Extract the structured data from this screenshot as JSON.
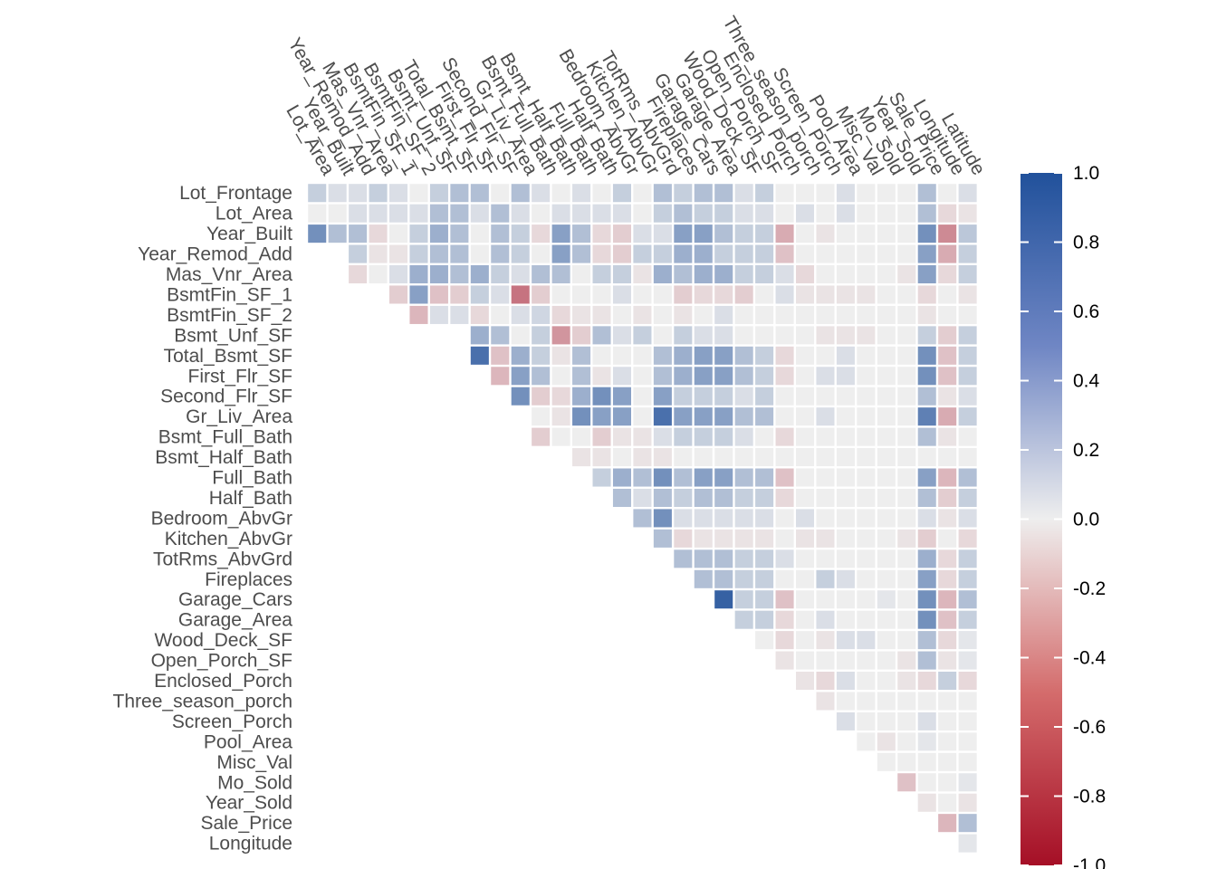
{
  "chart_data": {
    "type": "heatmap",
    "title": "",
    "xlabel": "",
    "ylabel": "",
    "variables": [
      "Lot_Frontage",
      "Lot_Area",
      "Year_Built",
      "Year_Remod_Add",
      "Mas_Vnr_Area",
      "BsmtFin_SF_1",
      "BsmtFin_SF_2",
      "Bsmt_Unf_SF",
      "Total_Bsmt_SF",
      "First_Flr_SF",
      "Second_Flr_SF",
      "Gr_Liv_Area",
      "Bsmt_Full_Bath",
      "Bsmt_Half_Bath",
      "Full_Bath",
      "Half_Bath",
      "Bedroom_AbvGr",
      "Kitchen_AbvGr",
      "TotRms_AbvGrd",
      "Fireplaces",
      "Garage_Cars",
      "Garage_Area",
      "Wood_Deck_SF",
      "Open_Porch_SF",
      "Enclosed_Porch",
      "Three_season_porch",
      "Screen_Porch",
      "Pool_Area",
      "Misc_Val",
      "Mo_Sold",
      "Year_Sold",
      "Sale_Price",
      "Longitude",
      "Latitude"
    ],
    "row_labels": [
      "Lot_Frontage",
      "Lot_Area",
      "Year_Built",
      "Year_Remod_Add",
      "Mas_Vnr_Area",
      "BsmtFin_SF_1",
      "BsmtFin_SF_2",
      "Bsmt_Unf_SF",
      "Total_Bsmt_SF",
      "First_Flr_SF",
      "Second_Flr_SF",
      "Gr_Liv_Area",
      "Bsmt_Full_Bath",
      "Bsmt_Half_Bath",
      "Full_Bath",
      "Half_Bath",
      "Bedroom_AbvGr",
      "Kitchen_AbvGr",
      "TotRms_AbvGrd",
      "Fireplaces",
      "Garage_Cars",
      "Garage_Area",
      "Wood_Deck_SF",
      "Open_Porch_SF",
      "Enclosed_Porch",
      "Three_season_porch",
      "Screen_Porch",
      "Pool_Area",
      "Misc_Val",
      "Mo_Sold",
      "Year_Sold",
      "Sale_Price",
      "Longitude"
    ],
    "col_labels": [
      "Lot_Area",
      "Year_Built",
      "Year_Remod_Add",
      "Mas_Vnr_Area",
      "BsmtFin_SF_1",
      "BsmtFin_SF_2",
      "Bsmt_Unf_SF",
      "Total_Bsmt_SF",
      "First_Flr_SF",
      "Second_Flr_SF",
      "Gr_Liv_Area",
      "Bsmt_Full_Bath",
      "Bsmt_Half_Bath",
      "Full_Bath",
      "Half_Bath",
      "Bedroom_AbvGr",
      "Kitchen_AbvGr",
      "TotRms_AbvGrd",
      "Fireplaces",
      "Garage_Cars",
      "Garage_Area",
      "Wood_Deck_SF",
      "Open_Porch_SF",
      "Enclosed_Porch",
      "Three_season_porch",
      "Screen_Porch",
      "Pool_Area",
      "Misc_Val",
      "Mo_Sold",
      "Year_Sold",
      "Sale_Price",
      "Longitude",
      "Latitude"
    ],
    "values": [
      [
        0.2,
        0.1,
        0.1,
        0.2,
        0.1,
        0.0,
        0.2,
        0.3,
        0.3,
        0.0,
        0.3,
        0.1,
        0.0,
        0.1,
        0.0,
        0.2,
        0.0,
        0.3,
        0.2,
        0.3,
        0.3,
        0.1,
        0.2,
        0.0,
        0.0,
        0.0,
        0.1,
        0.0,
        0.0,
        0.0,
        0.3,
        0.0,
        0.1
      ],
      [
        0.0,
        0.0,
        0.1,
        0.1,
        0.1,
        0.1,
        0.3,
        0.3,
        0.1,
        0.3,
        0.1,
        0.0,
        0.1,
        0.1,
        0.1,
        0.1,
        0.0,
        0.2,
        0.3,
        0.2,
        0.2,
        0.1,
        0.1,
        0.0,
        0.1,
        0.0,
        0.1,
        0.0,
        0.0,
        0.0,
        0.3,
        -0.1,
        -0.05
      ],
      [
        0.6,
        0.3,
        0.3,
        -0.1,
        0.0,
        0.2,
        0.4,
        0.3,
        0.0,
        0.3,
        0.2,
        -0.1,
        0.5,
        0.3,
        -0.1,
        -0.15,
        0.1,
        0.1,
        0.5,
        0.5,
        0.3,
        0.2,
        0.2,
        -0.3,
        0.0,
        -0.05,
        0.0,
        0.0,
        0.0,
        0.0,
        0.6,
        -0.45,
        0.25
      ],
      [
        0.2,
        -0.05,
        -0.05,
        0.2,
        0.3,
        0.3,
        0.0,
        0.3,
        0.2,
        0.0,
        0.5,
        0.3,
        -0.1,
        -0.15,
        0.2,
        0.2,
        0.4,
        0.4,
        0.2,
        0.2,
        0.2,
        -0.2,
        0.0,
        0.0,
        0.0,
        0.0,
        0.0,
        0.0,
        0.5,
        -0.3,
        0.2
      ],
      [
        -0.1,
        0.0,
        0.1,
        0.4,
        0.4,
        0.3,
        0.4,
        0.2,
        0.1,
        0.3,
        0.3,
        0.0,
        0.2,
        0.2,
        -0.05,
        0.4,
        0.3,
        0.4,
        0.4,
        0.2,
        0.2,
        0.1,
        -0.1,
        0.0,
        0.0,
        0.0,
        0.0,
        -0.05,
        0.5,
        -0.1,
        0.2
      ],
      [
        -0.15,
        0.5,
        -0.2,
        -0.15,
        0.2,
        0.1,
        -0.55,
        -0.15,
        0.0,
        0.0,
        0.0,
        0.1,
        0.0,
        0.0,
        -0.15,
        -0.1,
        -0.1,
        -0.15,
        0.0,
        0.1,
        -0.05,
        -0.05,
        -0.05,
        -0.05,
        0.0,
        0.0,
        -0.1,
        0.0,
        -0.05
      ],
      [
        -0.25,
        0.1,
        0.1,
        -0.1,
        0.0,
        0.1,
        0.15,
        -0.1,
        -0.05,
        -0.05,
        0.0,
        -0.05,
        0.0,
        -0.05,
        0.0,
        0.1,
        0.0,
        0.0,
        0.0,
        0.0,
        0.0,
        0.0,
        0.0,
        0.0,
        0.0,
        -0.05,
        0.0,
        0.0
      ],
      [
        0.4,
        0.3,
        0.0,
        0.2,
        -0.4,
        -0.15,
        0.3,
        0.1,
        0.2,
        0.0,
        0.2,
        0.1,
        0.1,
        0.0,
        0.0,
        0.0,
        0.0,
        -0.05,
        -0.05,
        -0.05,
        0.0,
        0.0,
        0.2,
        -0.15,
        0.2
      ],
      [
        0.8,
        -0.2,
        0.4,
        0.2,
        -0.05,
        0.3,
        0.0,
        0.0,
        0.0,
        0.3,
        0.4,
        0.5,
        0.5,
        0.3,
        0.2,
        -0.1,
        0.0,
        0.0,
        0.1,
        0.0,
        0.0,
        0.0,
        0.6,
        -0.2,
        0.2
      ],
      [
        -0.25,
        0.5,
        0.3,
        0.0,
        0.3,
        -0.05,
        0.1,
        0.0,
        0.3,
        0.4,
        0.5,
        0.5,
        0.3,
        0.2,
        -0.1,
        0.0,
        0.1,
        0.1,
        0.0,
        0.0,
        0.0,
        0.6,
        -0.2,
        0.2
      ],
      [
        0.6,
        -0.15,
        -0.1,
        0.4,
        0.6,
        0.5,
        0.0,
        0.5,
        0.2,
        0.2,
        0.2,
        0.1,
        0.2,
        0.0,
        0.0,
        0.0,
        0.0,
        0.0,
        0.0,
        0.0,
        0.3,
        -0.05,
        0.1
      ],
      [
        0.0,
        -0.05,
        0.6,
        0.5,
        0.5,
        0.0,
        0.8,
        0.5,
        0.5,
        0.5,
        0.3,
        0.3,
        0.0,
        0.0,
        0.1,
        0.0,
        0.0,
        0.0,
        0.0,
        0.7,
        -0.3,
        0.2
      ],
      [
        -0.15,
        0.0,
        0.0,
        -0.15,
        -0.05,
        -0.05,
        0.1,
        0.2,
        0.2,
        0.2,
        0.1,
        0.0,
        -0.1,
        0.0,
        0.0,
        0.0,
        0.0,
        0.0,
        0.0,
        0.3,
        -0.05,
        0.0
      ],
      [
        -0.05,
        -0.05,
        0.0,
        -0.05,
        -0.05,
        0.0,
        0.0,
        0.0,
        0.0,
        0.0,
        0.0,
        0.0,
        0.0,
        0.0,
        0.0,
        0.0,
        0.0,
        0.0,
        0.0,
        0.0
      ],
      [
        0.2,
        0.4,
        0.3,
        0.6,
        0.3,
        0.5,
        0.5,
        0.3,
        0.3,
        -0.2,
        0.0,
        0.0,
        0.0,
        0.0,
        0.0,
        0.0,
        0.5,
        -0.25,
        0.3
      ],
      [
        0.3,
        0.1,
        0.3,
        0.2,
        0.3,
        0.3,
        0.2,
        0.2,
        -0.1,
        0.0,
        0.0,
        0.0,
        0.0,
        0.0,
        0.0,
        0.3,
        -0.15,
        0.2
      ],
      [
        0.3,
        0.6,
        0.1,
        0.1,
        0.1,
        0.1,
        0.1,
        0.0,
        0.1,
        0.0,
        0.0,
        0.0,
        0.0,
        0.0,
        0.1,
        -0.05,
        0.1
      ],
      [
        0.3,
        -0.1,
        -0.05,
        -0.05,
        -0.05,
        -0.05,
        0.0,
        -0.05,
        -0.05,
        0.0,
        0.0,
        0.0,
        -0.05,
        -0.15,
        0.0,
        -0.1
      ],
      [
        0.3,
        0.3,
        0.3,
        0.2,
        0.2,
        0.1,
        0.0,
        0.0,
        0.0,
        0.0,
        0.0,
        0.0,
        0.4,
        -0.1,
        0.2
      ],
      [
        0.3,
        0.3,
        0.2,
        0.2,
        0.0,
        0.0,
        0.2,
        0.1,
        0.0,
        0.0,
        0.0,
        0.5,
        -0.1,
        0.2
      ],
      [
        0.9,
        0.2,
        0.2,
        -0.2,
        0.0,
        0.0,
        0.0,
        0.0,
        0.05,
        0.0,
        0.6,
        -0.25,
        0.3
      ],
      [
        0.2,
        0.2,
        -0.1,
        0.0,
        0.1,
        0.0,
        0.0,
        0.0,
        0.0,
        0.6,
        -0.2,
        0.2
      ],
      [
        0.0,
        -0.1,
        0.0,
        -0.05,
        0.1,
        0.1,
        0.0,
        0.0,
        0.3,
        -0.1,
        0.05
      ],
      [
        -0.05,
        0.0,
        0.0,
        0.0,
        0.0,
        0.0,
        -0.05,
        0.3,
        -0.05,
        0.05
      ],
      [
        -0.05,
        -0.1,
        0.1,
        0.0,
        0.0,
        -0.05,
        -0.1,
        0.2,
        -0.1
      ],
      [
        -0.05,
        0.0,
        0.0,
        0.0,
        0.0,
        0.0,
        0.0,
        0.0
      ],
      [
        0.1,
        0.0,
        0.0,
        0.0,
        0.1,
        0.0,
        0.0
      ],
      [
        0.0,
        -0.05,
        0.0,
        0.05,
        0.0,
        0.0
      ],
      [
        0.0,
        0.0,
        0.0,
        0.0,
        0.0
      ],
      [
        -0.2,
        0.0,
        0.0,
        0.05
      ],
      [
        -0.05,
        0.0,
        -0.05
      ],
      [
        -0.25,
        0.3
      ],
      [
        0.05
      ]
    ],
    "color_scale": {
      "min": -1.0,
      "max": 1.0,
      "low_color": "#a50f26",
      "mid_color": "#eeeeee",
      "high_color": "#21519b",
      "ticks": [
        "1.0",
        "0.8",
        "0.6",
        "0.4",
        "0.2",
        "0.0",
        "-0.2",
        "-0.4",
        "-0.6",
        "-0.8",
        "-1.0"
      ]
    },
    "legend_position": "right",
    "grid": false
  }
}
